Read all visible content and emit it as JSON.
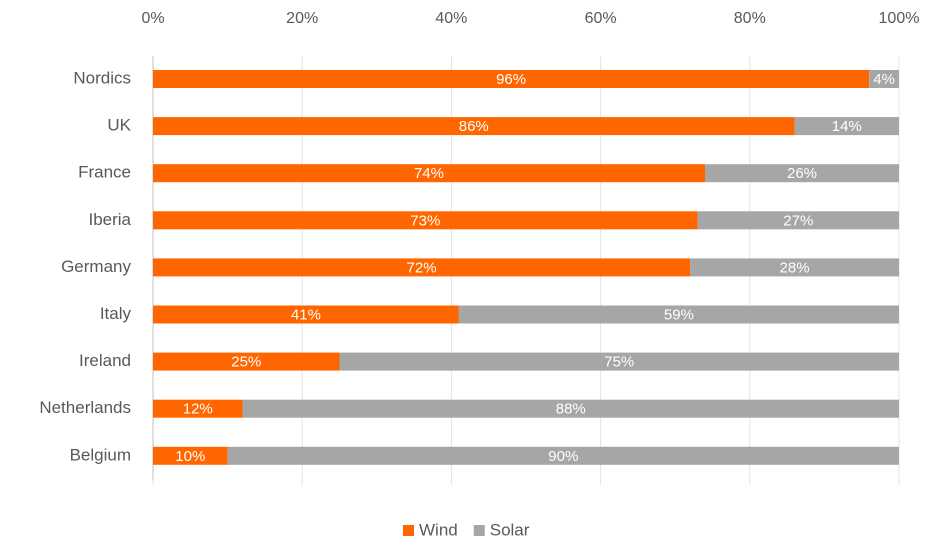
{
  "chart_data": {
    "type": "stacked-bar-horizontal",
    "categories": [
      "Nordics",
      "UK",
      "France",
      "Iberia",
      "Germany",
      "Italy",
      "Ireland",
      "Netherlands",
      "Belgium"
    ],
    "series": [
      {
        "name": "Wind",
        "color": "#ff6600",
        "values": [
          96,
          86,
          74,
          73,
          72,
          41,
          25,
          12,
          10
        ],
        "value_labels": [
          "96%",
          "86%",
          "74%",
          "73%",
          "72%",
          "41%",
          "25%",
          "12%",
          "10%"
        ]
      },
      {
        "name": "Solar",
        "color": "#a6a6a6",
        "values": [
          4,
          14,
          26,
          27,
          28,
          59,
          75,
          88,
          90
        ],
        "value_labels": [
          "4%",
          "14%",
          "26%",
          "27%",
          "28%",
          "59%",
          "75%",
          "88%",
          "90%"
        ]
      }
    ],
    "xlim": [
      0,
      100
    ],
    "xticks": [
      {
        "value": 0,
        "label": "0%"
      },
      {
        "value": 20,
        "label": "20%"
      },
      {
        "value": 40,
        "label": "40%"
      },
      {
        "value": 60,
        "label": "60%"
      },
      {
        "value": 80,
        "label": "80%"
      },
      {
        "value": 100,
        "label": "100%"
      }
    ],
    "grid": true,
    "legend": "bottom"
  }
}
